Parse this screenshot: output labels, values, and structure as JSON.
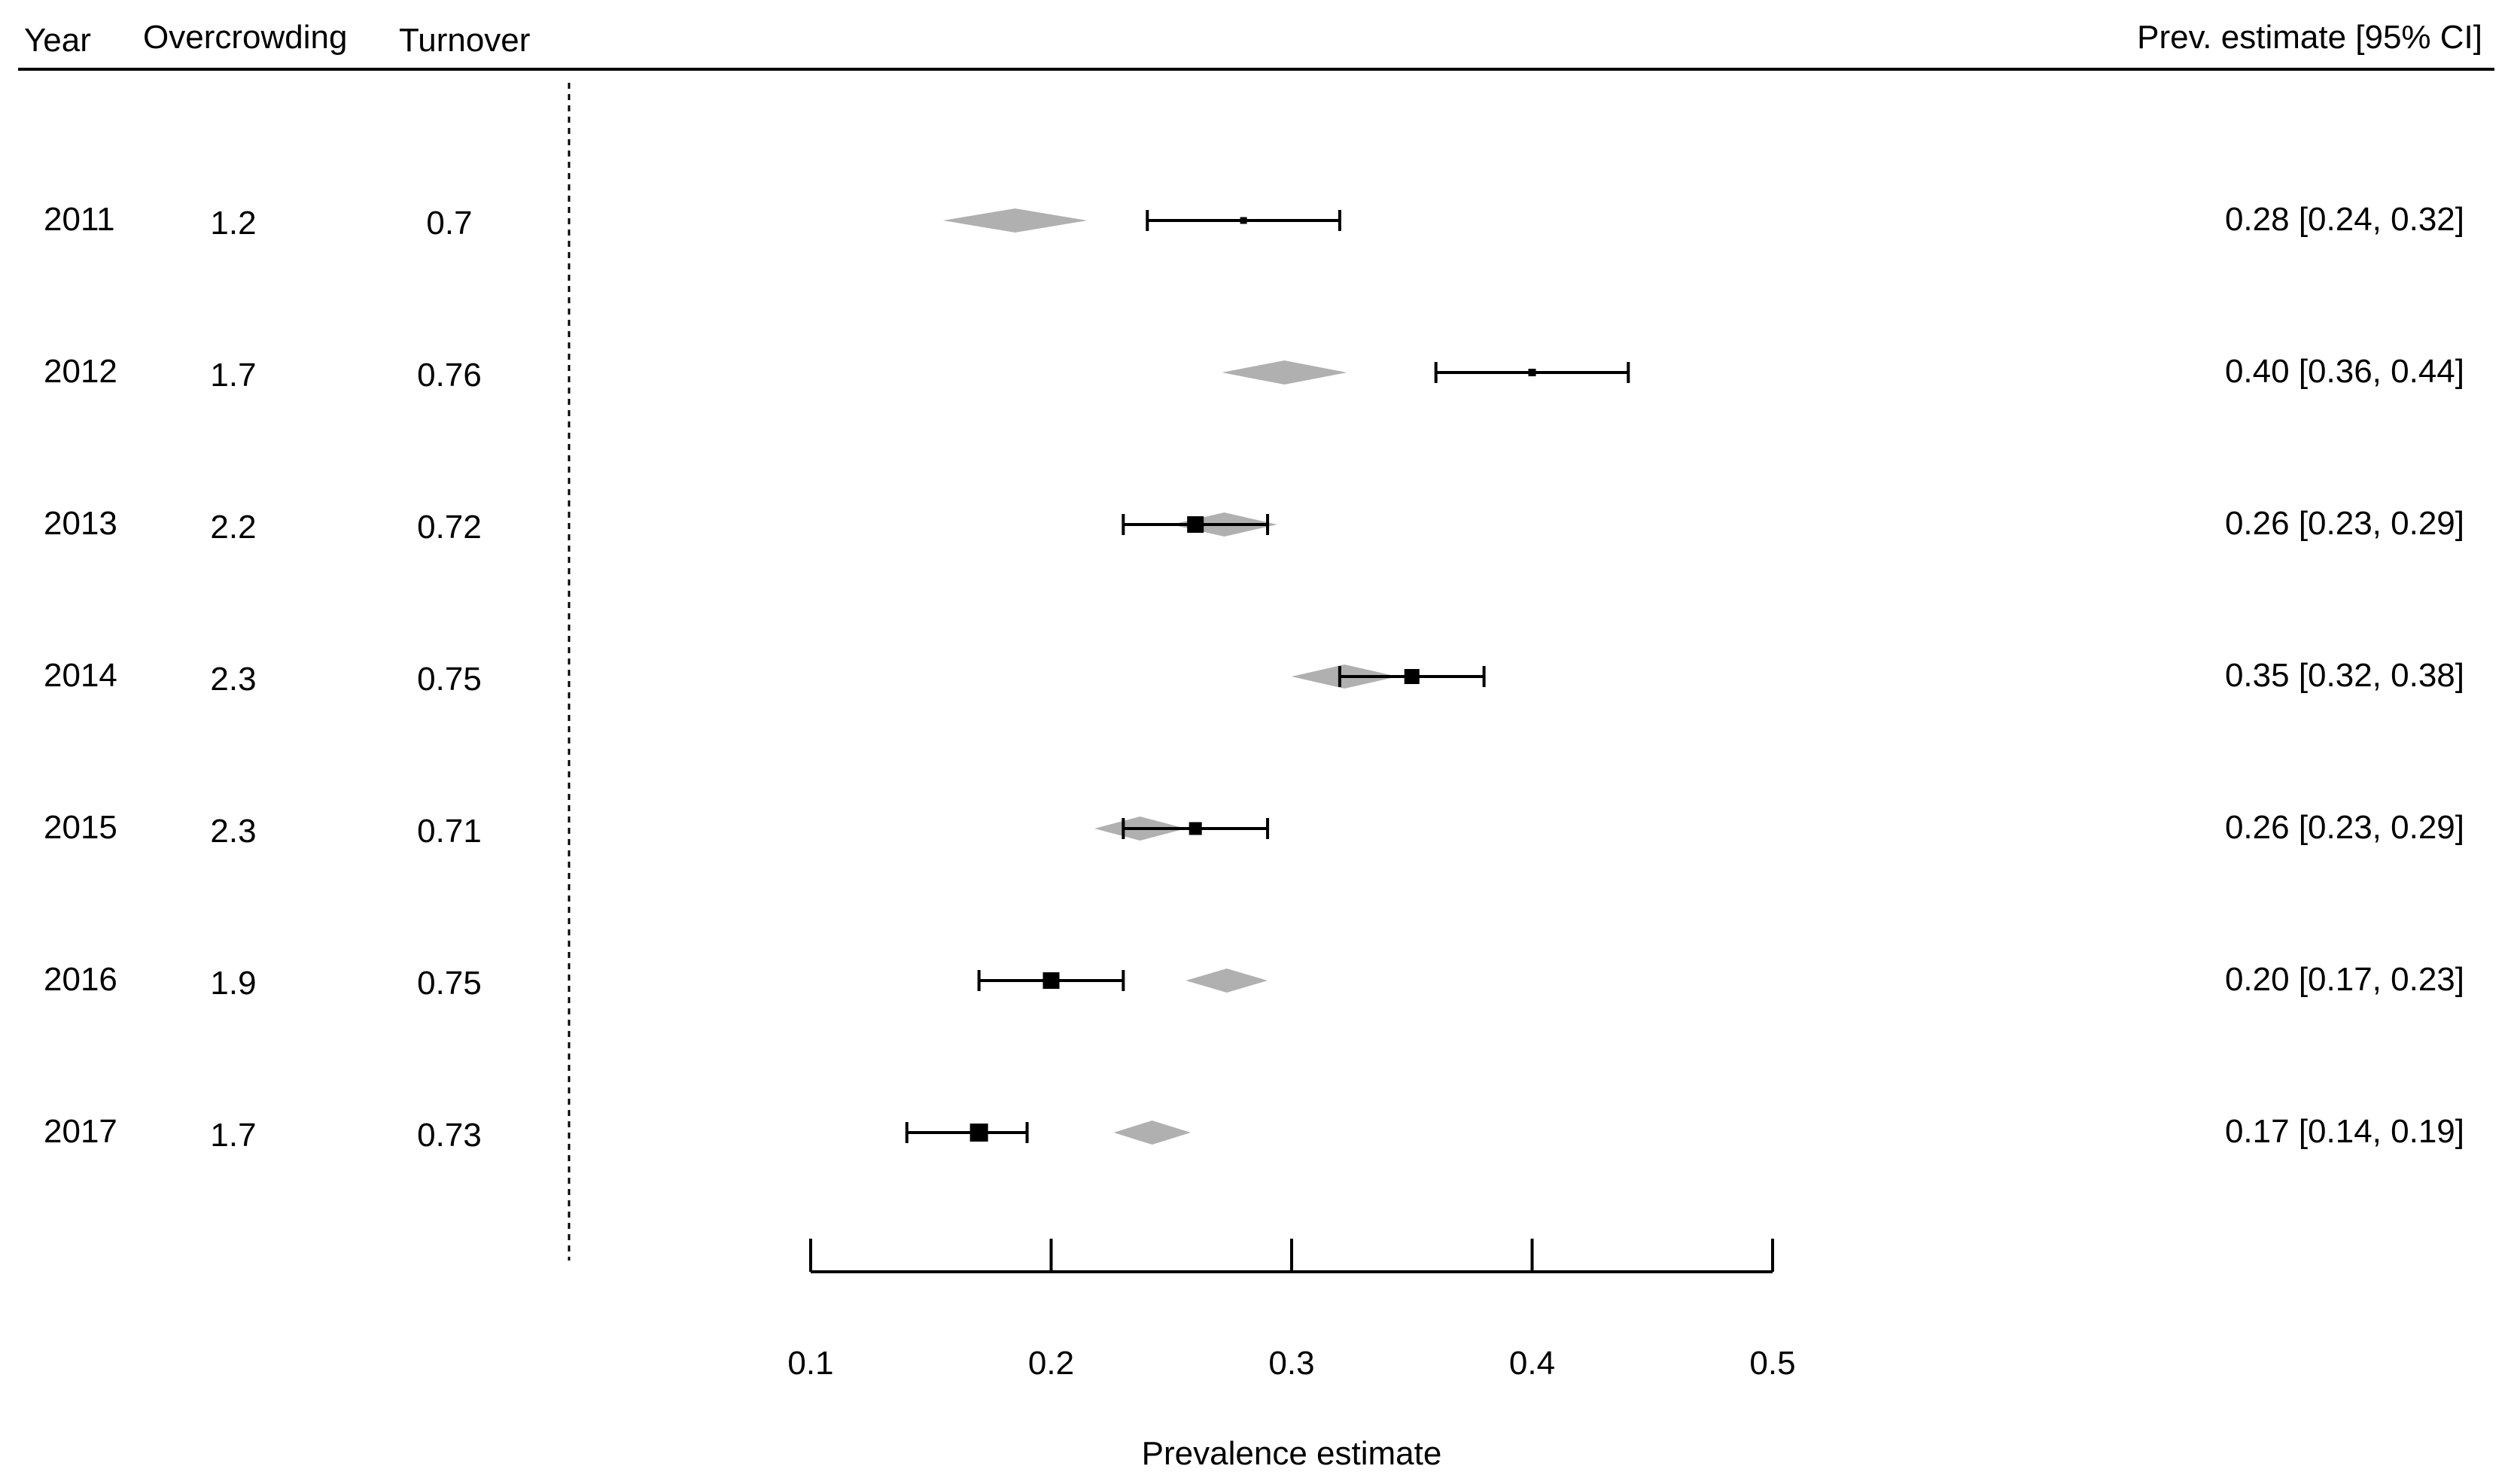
{
  "chart_data": {
    "type": "forest",
    "headers": {
      "year": "Year",
      "overcrowding": "Overcrowding",
      "turnover": "Turnover",
      "estimate": "Prev. estimate [95% CI]"
    },
    "rows": [
      {
        "year": "2011",
        "overcrowding": "1.2",
        "turnover": "0.7",
        "estimate": 0.28,
        "ci_low": 0.24,
        "ci_high": 0.32,
        "label": "0.28 [0.24, 0.32]",
        "predicted": 0.185,
        "predicted_halfwidth": 0.03
      },
      {
        "year": "2012",
        "overcrowding": "1.7",
        "turnover": "0.76",
        "estimate": 0.4,
        "ci_low": 0.36,
        "ci_high": 0.44,
        "label": "0.40 [0.36, 0.44]",
        "predicted": 0.297,
        "predicted_halfwidth": 0.026
      },
      {
        "year": "2013",
        "overcrowding": "2.2",
        "turnover": "0.72",
        "estimate": 0.26,
        "ci_low": 0.23,
        "ci_high": 0.29,
        "label": "0.26 [0.23, 0.29]",
        "predicted": 0.272,
        "predicted_halfwidth": 0.022
      },
      {
        "year": "2014",
        "overcrowding": "2.3",
        "turnover": "0.75",
        "estimate": 0.35,
        "ci_low": 0.32,
        "ci_high": 0.38,
        "label": "0.35 [0.32, 0.38]",
        "predicted": 0.322,
        "predicted_halfwidth": 0.022
      },
      {
        "year": "2015",
        "overcrowding": "2.3",
        "turnover": "0.71",
        "estimate": 0.26,
        "ci_low": 0.23,
        "ci_high": 0.29,
        "label": "0.26 [0.23, 0.29]",
        "predicted": 0.237,
        "predicted_halfwidth": 0.019
      },
      {
        "year": "2016",
        "overcrowding": "1.9",
        "turnover": "0.75",
        "estimate": 0.2,
        "ci_low": 0.17,
        "ci_high": 0.23,
        "label": "0.20 [0.17, 0.23]",
        "predicted": 0.273,
        "predicted_halfwidth": 0.017
      },
      {
        "year": "2017",
        "overcrowding": "1.7",
        "turnover": "0.73",
        "estimate": 0.17,
        "ci_low": 0.14,
        "ci_high": 0.19,
        "label": "0.17 [0.14, 0.19]",
        "predicted": 0.242,
        "predicted_halfwidth": 0.016
      }
    ],
    "xlim": [
      0.1,
      0.5
    ],
    "xticks": [
      "0.1",
      "0.2",
      "0.3",
      "0.4",
      "0.5"
    ],
    "xlabel": "Prevalence estimate",
    "colors": {
      "point": "#000000",
      "predicted": "#b0b0b0"
    }
  }
}
